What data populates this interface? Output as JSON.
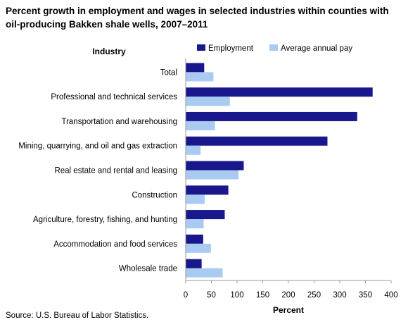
{
  "title": "Percent growth in employment and wages in selected industries within counties with oil-producing Bakken shale wells, 2007–2011",
  "source": "Source: U.S. Bureau of Labor Statistics.",
  "colors": {
    "employment": "#18188c",
    "pay": "#a9cbf2",
    "axis": "#999999"
  },
  "chart_data": {
    "type": "bar",
    "orientation": "horizontal",
    "title": "Percent growth in employment and wages in selected industries within counties with oil-producing Bakken shale wells, 2007–2011",
    "ylabel": "Industry",
    "xlabel": "Percent",
    "xlim": [
      0,
      400
    ],
    "xticks": [
      "0",
      "50",
      "100",
      "150",
      "200",
      "250",
      "300",
      "350",
      "400"
    ],
    "legend": "top",
    "grid": false,
    "categories": [
      "Total",
      "Professional and technical services",
      "Transportation and warehousing",
      "Mining, quarrying, and oil and gas extraction",
      "Real estate and rental and leasing",
      "Construction",
      "Agriculture, forestry, fishing, and hunting",
      "Accommodation and food services",
      "Wholesale trade"
    ],
    "series": [
      {
        "name": "Employment",
        "values": [
          36,
          364,
          334,
          276,
          113,
          83,
          76,
          34,
          31
        ]
      },
      {
        "name": "Average annual pay",
        "values": [
          54,
          86,
          57,
          29,
          103,
          37,
          35,
          49,
          72
        ]
      }
    ]
  }
}
